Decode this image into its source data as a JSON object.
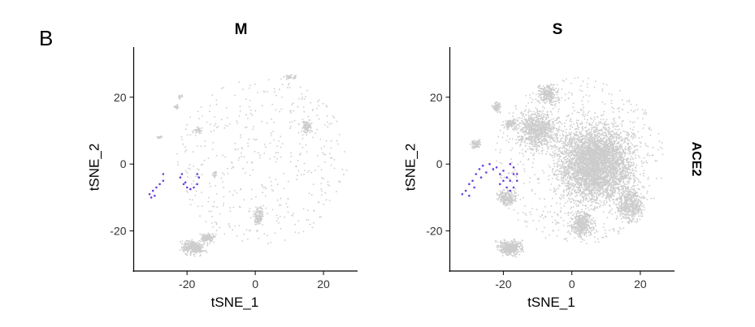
{
  "figure": {
    "panel_letter": "B",
    "strip_label": "ACE2"
  },
  "chart_data": [
    {
      "type": "scatter",
      "title": "M",
      "xlabel": "tSNE_1",
      "ylabel": "tSNE_2",
      "xlim": [
        -36,
        30
      ],
      "ylim": [
        -32,
        35
      ],
      "xticks": [
        -20,
        0,
        20
      ],
      "yticks": [
        -20,
        0,
        20
      ],
      "grid": false,
      "colors": {
        "background_points": "#cccccc",
        "expressing_points": "#6a3fe0"
      },
      "series": [
        {
          "values": [
            {
              "x": -31,
              "y": -9
            },
            {
              "x": -30,
              "y": -8
            },
            {
              "x": -29,
              "y": -7
            },
            {
              "x": -28,
              "y": -6
            },
            {
              "x": -27,
              "y": -5
            },
            {
              "x": -27,
              "y": -3
            },
            {
              "x": -30.5,
              "y": -10
            },
            {
              "x": -29.5,
              "y": -9.5
            },
            {
              "x": -22,
              "y": -4
            },
            {
              "x": -21,
              "y": -6
            },
            {
              "x": -20,
              "y": -7
            },
            {
              "x": -19,
              "y": -7.5
            },
            {
              "x": -18,
              "y": -7
            },
            {
              "x": -17,
              "y": -6
            },
            {
              "x": -16.5,
              "y": -4
            },
            {
              "x": -17,
              "y": -3
            },
            {
              "x": -21.5,
              "y": -3
            },
            {
              "x": -20.5,
              "y": -5.5
            }
          ]
        }
      ]
    },
    {
      "type": "scatter",
      "title": "S",
      "xlabel": "tSNE_1",
      "ylabel": "tSNE_2",
      "xlim": [
        -36,
        30
      ],
      "ylim": [
        -32,
        35
      ],
      "xticks": [
        -20,
        0,
        20
      ],
      "yticks": [
        -20,
        0,
        20
      ],
      "grid": false,
      "colors": {
        "background_points": "#cccccc",
        "expressing_points": "#6a3fe0"
      },
      "series": [
        {
          "values": [
            {
              "x": -32,
              "y": -9
            },
            {
              "x": -31,
              "y": -8
            },
            {
              "x": -30,
              "y": -6
            },
            {
              "x": -29,
              "y": -5
            },
            {
              "x": -28,
              "y": -3
            },
            {
              "x": -27,
              "y": -1.5
            },
            {
              "x": -26,
              "y": -0.5
            },
            {
              "x": -24,
              "y": 0
            },
            {
              "x": -22,
              "y": -1
            },
            {
              "x": -21,
              "y": -3
            },
            {
              "x": -20,
              "y": -5
            },
            {
              "x": -19,
              "y": -7
            },
            {
              "x": -18,
              "y": -8
            },
            {
              "x": -17,
              "y": -7
            },
            {
              "x": -16,
              "y": -5
            },
            {
              "x": -16,
              "y": -3
            },
            {
              "x": -17,
              "y": -1
            },
            {
              "x": -18,
              "y": 0
            },
            {
              "x": -20,
              "y": -2
            },
            {
              "x": -19,
              "y": -4
            },
            {
              "x": -18,
              "y": -5
            },
            {
              "x": -17,
              "y": -3
            },
            {
              "x": -21,
              "y": -6
            },
            {
              "x": -30,
              "y": -9.5
            },
            {
              "x": -28.5,
              "y": -7
            },
            {
              "x": -26.5,
              "y": -4
            },
            {
              "x": -25,
              "y": -2.5
            },
            {
              "x": -23,
              "y": -1.5
            }
          ]
        }
      ]
    }
  ]
}
